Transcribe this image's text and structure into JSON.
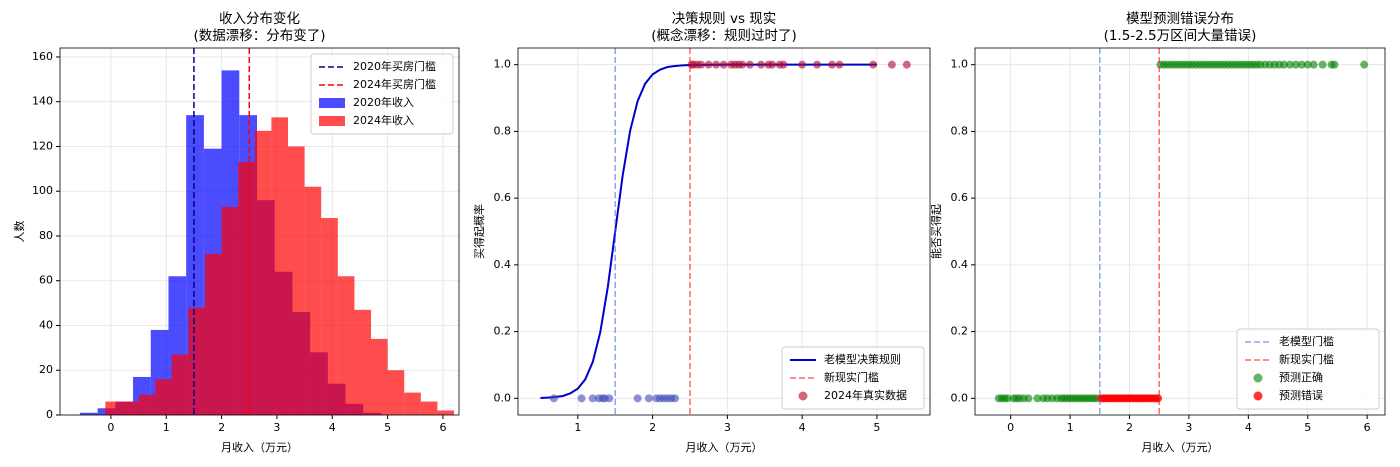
{
  "chart_data": [
    {
      "type": "histogram",
      "title": "收入分布变化",
      "subtitle": "(数据漂移：分布变了)",
      "xlabel": "月收入（万元）",
      "ylabel": "人数",
      "xlim": [
        -0.92,
        6.29
      ],
      "ylim": [
        0,
        164
      ],
      "xticks": [
        0,
        1,
        2,
        3,
        4,
        5,
        6
      ],
      "yticks": [
        0,
        20,
        40,
        60,
        80,
        100,
        120,
        140,
        160
      ],
      "grid": true,
      "legend": "upper right",
      "vlines": [
        {
          "name": "2020年买房门槛",
          "value": 1.5,
          "color": "#00008b"
        },
        {
          "name": "2024年买房门槛",
          "value": 2.5,
          "color": "#ff0000"
        }
      ],
      "series": [
        {
          "name": "2020年收入",
          "color": "#0000ff",
          "bins": [
            -0.56,
            -0.24,
            0.08,
            0.4,
            0.72,
            1.04,
            1.36,
            1.68,
            2.0,
            2.32,
            2.64,
            2.96,
            3.28,
            3.6,
            3.92,
            4.24,
            4.56,
            4.88
          ],
          "values": [
            1,
            3,
            6,
            17,
            38,
            62,
            134,
            119,
            154,
            134,
            96,
            64,
            46,
            28,
            14,
            5,
            1
          ]
        },
        {
          "name": "2024年收入",
          "color": "#ff0000",
          "bins": [
            -0.1,
            0.2,
            0.5,
            0.8,
            1.1,
            1.4,
            1.7,
            2.0,
            2.3,
            2.6,
            2.9,
            3.2,
            3.5,
            3.8,
            4.1,
            4.4,
            4.7,
            5.0,
            5.3,
            5.6,
            5.9,
            6.2
          ],
          "values": [
            6,
            6,
            9,
            16,
            27,
            48,
            72,
            93,
            113,
            127,
            133,
            120,
            102,
            88,
            62,
            47,
            34,
            20,
            10,
            6,
            2
          ]
        }
      ]
    },
    {
      "type": "line",
      "title": "决策规则 vs 现实",
      "subtitle": "(概念漂移：规则过时了)",
      "xlabel": "月收入（万元）",
      "ylabel": "买得起概率",
      "xlim": [
        0.2,
        5.71
      ],
      "ylim": [
        -0.05,
        1.05
      ],
      "xticks": [
        1,
        2,
        3,
        4,
        5
      ],
      "yticks": [
        {
          "value": 0,
          "label": "0.0"
        },
        0.2,
        0.4,
        0.6,
        0.8,
        {
          "value": 1,
          "label": "1.0"
        }
      ],
      "grid": true,
      "legend": "lower right",
      "vlines": [
        {
          "value": 1.5,
          "color": "#4169e1"
        },
        {
          "name": "新现实门槛",
          "value": 2.5,
          "color": "#ff0000"
        }
      ],
      "series": [
        {
          "name": "老模型决策规则",
          "type": "line",
          "color": "#0000cd",
          "x": [
            0.5,
            0.6,
            0.7,
            0.8,
            0.9,
            1.0,
            1.1,
            1.2,
            1.3,
            1.4,
            1.5,
            1.6,
            1.7,
            1.8,
            1.9,
            2.0,
            2.1,
            2.2,
            2.3,
            2.4,
            2.5,
            3.0,
            3.5,
            4.0,
            4.5,
            5.0
          ],
          "values": [
            0.001,
            0.002,
            0.004,
            0.007,
            0.015,
            0.029,
            0.057,
            0.109,
            0.198,
            0.332,
            0.5,
            0.668,
            0.802,
            0.891,
            0.943,
            0.971,
            0.985,
            0.993,
            0.996,
            0.998,
            0.999,
            1,
            1,
            1,
            1,
            1
          ]
        },
        {
          "name": "2024年真实数据",
          "type": "scatter",
          "color": "#b40426",
          "cmap": [
            "#3b4cc0",
            "#b40426"
          ],
          "x": [
            0.68,
            1.05,
            1.2,
            1.28,
            1.33,
            1.36,
            1.42,
            1.8,
            1.95,
            2.05,
            2.1,
            2.15,
            2.2,
            2.25,
            2.3,
            2.52,
            2.55,
            2.6,
            2.65,
            2.75,
            2.85,
            2.95,
            3.05,
            3.1,
            3.15,
            3.2,
            3.3,
            3.45,
            3.55,
            3.6,
            3.7,
            3.75,
            4.0,
            4.2,
            4.4,
            4.5,
            4.95,
            5.2,
            5.4
          ],
          "values": [
            0,
            0,
            0,
            0,
            0,
            0,
            0,
            0,
            0,
            0,
            0,
            0,
            0,
            0,
            0,
            1,
            1,
            1,
            1,
            1,
            1,
            1,
            1,
            1,
            1,
            1,
            1,
            1,
            1,
            1,
            1,
            1,
            1,
            1,
            1,
            1,
            1,
            1,
            1
          ]
        }
      ]
    },
    {
      "type": "scatter",
      "title": "模型预测错误分布",
      "subtitle": "(1.5-2.5万区间大量错误)",
      "xlabel": "月收入（万元）",
      "ylabel": "能否买得起",
      "xlim": [
        -0.6,
        6.3
      ],
      "ylim": [
        -0.05,
        1.05
      ],
      "xticks": [
        0,
        1,
        2,
        3,
        4,
        5,
        6
      ],
      "yticks": [
        {
          "value": 0,
          "label": "0.0"
        },
        0.2,
        0.4,
        0.6,
        0.8,
        {
          "value": 1,
          "label": "1.0"
        }
      ],
      "grid": true,
      "legend": "lower right",
      "vlines": [
        {
          "name": "老模型门槛",
          "value": 1.5,
          "color": "#4169e1"
        },
        {
          "name": "新现实门槛",
          "value": 2.5,
          "color": "#ff0000"
        }
      ],
      "series": [
        {
          "name": "预测正确",
          "type": "scatter",
          "color": "#008000",
          "x": [
            -0.2,
            -0.15,
            -0.1,
            -0.05,
            0.05,
            0.1,
            0.15,
            0.22,
            0.3,
            0.45,
            0.55,
            0.62,
            0.7,
            0.78,
            0.85,
            0.9,
            0.95,
            1.0,
            1.05,
            1.1,
            1.15,
            1.2,
            1.25,
            1.3,
            1.35,
            1.4,
            1.45,
            2.52,
            2.58,
            2.64,
            2.7,
            2.76,
            2.82,
            2.88,
            2.94,
            3.0,
            3.06,
            3.12,
            3.18,
            3.24,
            3.3,
            3.36,
            3.42,
            3.48,
            3.54,
            3.6,
            3.66,
            3.72,
            3.78,
            3.84,
            3.9,
            3.96,
            4.02,
            4.08,
            4.14,
            4.2,
            4.28,
            4.36,
            4.44,
            4.52,
            4.6,
            4.7,
            4.8,
            4.9,
            5.0,
            5.1,
            5.25,
            5.4,
            5.45,
            5.95
          ],
          "values": [
            0,
            0,
            0,
            0,
            0,
            0,
            0,
            0,
            0,
            0,
            0,
            0,
            0,
            0,
            0,
            0,
            0,
            0,
            0,
            0,
            0,
            0,
            0,
            0,
            0,
            0,
            0,
            1,
            1,
            1,
            1,
            1,
            1,
            1,
            1,
            1,
            1,
            1,
            1,
            1,
            1,
            1,
            1,
            1,
            1,
            1,
            1,
            1,
            1,
            1,
            1,
            1,
            1,
            1,
            1,
            1,
            1,
            1,
            1,
            1,
            1,
            1,
            1,
            1,
            1,
            1,
            1,
            1,
            1,
            1
          ]
        },
        {
          "name": "预测错误",
          "type": "scatter",
          "color": "#ff0000",
          "x": [
            1.52,
            1.56,
            1.6,
            1.64,
            1.68,
            1.72,
            1.76,
            1.8,
            1.84,
            1.88,
            1.92,
            1.96,
            2.0,
            2.04,
            2.08,
            2.12,
            2.16,
            2.2,
            2.24,
            2.28,
            2.32,
            2.36,
            2.4,
            2.44,
            2.48
          ],
          "values": [
            0,
            0,
            0,
            0,
            0,
            0,
            0,
            0,
            0,
            0,
            0,
            0,
            0,
            0,
            0,
            0,
            0,
            0,
            0,
            0,
            0,
            0,
            0,
            0,
            0
          ]
        }
      ]
    }
  ]
}
